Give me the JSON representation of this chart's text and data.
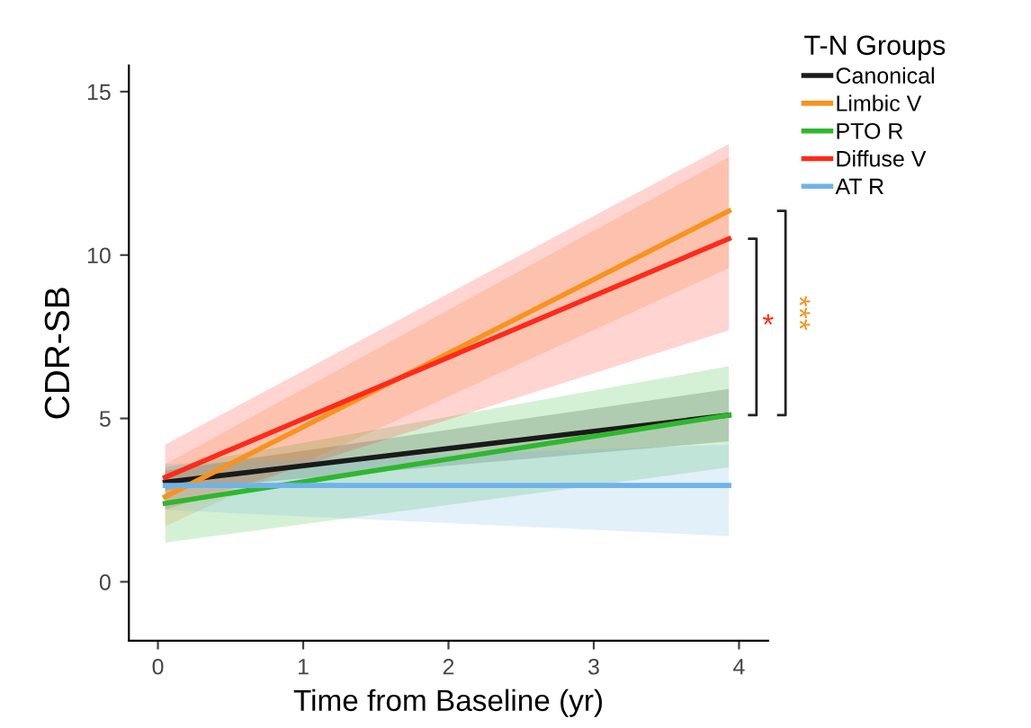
{
  "chart_data": {
    "type": "line",
    "xlabel": "Time from Baseline (yr)",
    "ylabel": "CDR-SB",
    "legend_title": "T-N Groups",
    "legend": "top right",
    "grid": false,
    "marker": "none",
    "line_style": "solid",
    "x": [
      0.05,
      3.93
    ],
    "xlim": [
      -0.2,
      4.2
    ],
    "xticks": [
      0,
      1,
      2,
      3,
      4
    ],
    "ylim": [
      -1.8,
      15.8
    ],
    "yticks": [
      0,
      5,
      10,
      15
    ],
    "series": [
      {
        "name": "Canonical",
        "color": "#1a1a1a",
        "values": [
          3.05,
          5.1
        ],
        "lower": [
          2.8,
          4.3
        ],
        "upper": [
          3.4,
          5.9
        ]
      },
      {
        "name": "Limbic V",
        "color": "#f7931e",
        "values": [
          2.6,
          11.35
        ],
        "lower": [
          1.7,
          9.6
        ],
        "upper": [
          3.6,
          13.0
        ]
      },
      {
        "name": "PTO R",
        "color": "#2eb82e",
        "values": [
          2.4,
          5.1
        ],
        "lower": [
          1.2,
          3.5
        ],
        "upper": [
          3.5,
          6.6
        ]
      },
      {
        "name": "Diffuse V",
        "color": "#ff2a1a",
        "values": [
          3.2,
          10.5
        ],
        "lower": [
          2.2,
          7.7
        ],
        "upper": [
          4.2,
          13.4
        ]
      },
      {
        "name": "AT R",
        "color": "#6fb3e8",
        "values": [
          2.95,
          2.95
        ],
        "lower": [
          2.2,
          1.4
        ],
        "upper": [
          3.6,
          4.2
        ]
      }
    ],
    "annotations": [
      "*",
      "***"
    ]
  }
}
